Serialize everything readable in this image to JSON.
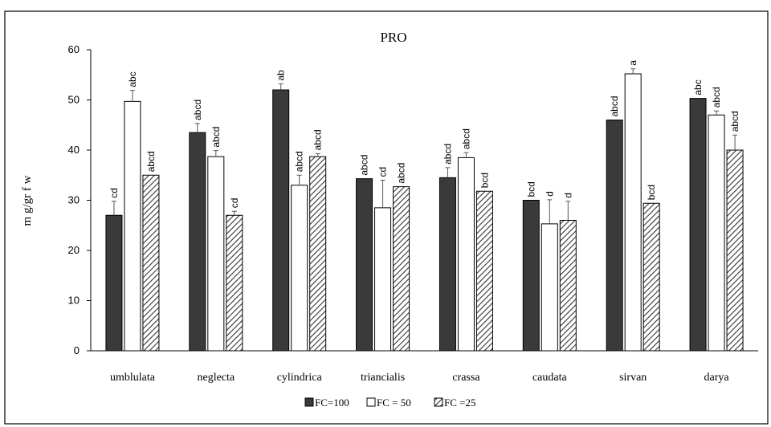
{
  "chart_data": {
    "type": "bar",
    "title": "PRO",
    "ylabel": "m g/gr f w",
    "xlabel": "",
    "ylim": [
      0,
      60
    ],
    "yticks": [
      0,
      10,
      20,
      30,
      40,
      50,
      60
    ],
    "grid": false,
    "legend_position": "bottom",
    "categories": [
      "umblulata",
      "neglecta",
      "cylindrica",
      "triancialis",
      "crassa",
      "caudata",
      "sirvan",
      "darya"
    ],
    "series": [
      {
        "name": "FC=100",
        "legend_label": "FC=100",
        "fill": "dark",
        "color": "#3a3a3a",
        "values": [
          27.0,
          43.5,
          52.0,
          34.3,
          34.5,
          30.0,
          46.0,
          50.3
        ],
        "errors": [
          2.8,
          1.8,
          1.2,
          0,
          2.0,
          0,
          0,
          0
        ],
        "letters": [
          "cd",
          "abcd",
          "ab",
          "abcd",
          "abcd",
          "bcd",
          "abcd",
          "abc"
        ]
      },
      {
        "name": "FC = 50",
        "legend_label": "FC = 50",
        "fill": "white",
        "color": "#ffffff",
        "values": [
          49.7,
          38.7,
          33.0,
          28.5,
          38.5,
          25.3,
          55.2,
          47.0
        ],
        "errors": [
          2.2,
          1.2,
          2.0,
          5.5,
          1.0,
          4.8,
          1.0,
          0.8
        ],
        "letters": [
          "abc",
          "abcd",
          "abcd",
          "cd",
          "abcd",
          "d",
          "a",
          "abcd"
        ]
      },
      {
        "name": "FC =25",
        "legend_label": "FC =25",
        "fill": "hatched",
        "color": "#555555",
        "values": [
          35.0,
          27.0,
          38.7,
          32.7,
          31.8,
          26.0,
          29.4,
          40.0
        ],
        "errors": [
          0,
          0.8,
          0.6,
          0,
          0,
          3.8,
          0,
          3.0
        ],
        "letters": [
          "abcd",
          "cd",
          "abcd",
          "abcd",
          "bcd",
          "d",
          "bcd",
          "abcd"
        ]
      }
    ]
  }
}
